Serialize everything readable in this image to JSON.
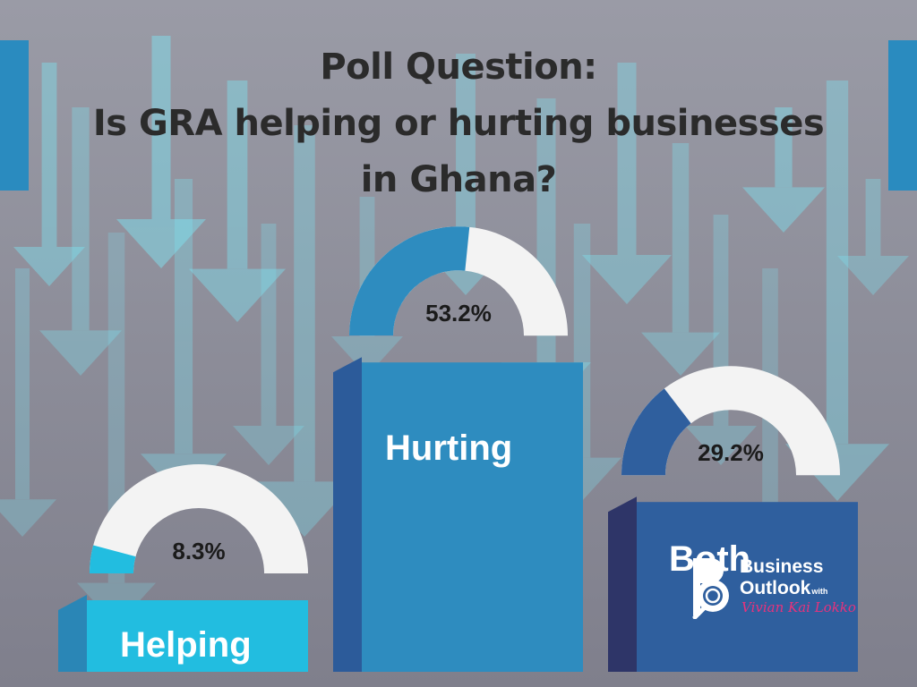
{
  "title": {
    "line1": "Poll Question:",
    "line2": "Is GRA helping or hurting businesses",
    "line3": "in Ghana?"
  },
  "chart_data": {
    "type": "bar",
    "title": "Poll Question: Is GRA helping or hurting businesses in Ghana?",
    "categories": [
      "Helping",
      "Hurting",
      "Both"
    ],
    "values": [
      8.3,
      53.2,
      29.2
    ],
    "value_labels": [
      "8.3%",
      "53.2%",
      "29.2%"
    ],
    "unit": "%",
    "ylim": [
      0,
      100
    ],
    "grid": false,
    "legend": "none",
    "colors": {
      "Helping": "#22bde0",
      "Hurting": "#2e8cbf",
      "Both": "#2f5f9e",
      "gauge_track": "#f3f3f3",
      "background": "#8a8a96",
      "arrows": "#7fdfee"
    }
  },
  "branding": {
    "line1": "Business",
    "line2": "Outlook",
    "with": "with",
    "host": "Vivian Kai Lokko",
    "icon": "magnifier-b-icon"
  }
}
